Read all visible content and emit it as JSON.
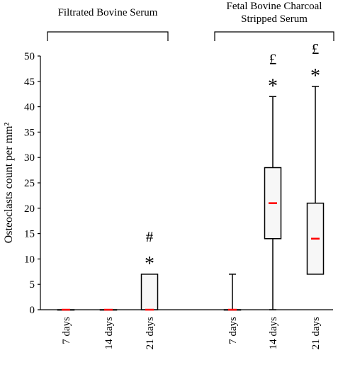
{
  "chart_data": {
    "type": "box",
    "ylabel": "Osteoclasts count per mm²",
    "ylim": [
      0,
      50
    ],
    "yticks": [
      0,
      5,
      10,
      15,
      20,
      25,
      30,
      35,
      40,
      45,
      50
    ],
    "grid": false,
    "groups": [
      {
        "label": "Filtrated Bovine Serum",
        "span": [
          0,
          2
        ]
      },
      {
        "label": "Fetal Bovine Charcoal Stripped Serum",
        "label_lines": [
          "Fetal Bovine Charcoal",
          "Stripped Serum"
        ],
        "span": [
          3,
          5
        ]
      }
    ],
    "categories": [
      "7 days",
      "14 days",
      "21 days",
      "7 days",
      "14 days",
      "21 days"
    ],
    "boxes": [
      {
        "min": 0,
        "q1": 0,
        "median": 0,
        "q3": 0,
        "max": 0,
        "markers": []
      },
      {
        "min": 0,
        "q1": 0,
        "median": 0,
        "q3": 0,
        "max": 0,
        "markers": []
      },
      {
        "min": 0,
        "q1": 0,
        "median": 0,
        "q3": 7,
        "max": 7,
        "markers": [
          "#",
          "*"
        ]
      },
      {
        "min": 0,
        "q1": 0,
        "median": 0,
        "q3": 0,
        "max": 7,
        "markers": []
      },
      {
        "min": 0,
        "q1": 14,
        "median": 21,
        "q3": 28,
        "max": 42,
        "markers": [
          "£",
          "*"
        ]
      },
      {
        "min": 7,
        "q1": 7,
        "median": 14,
        "q3": 21,
        "max": 44,
        "markers": [
          "£",
          "*"
        ]
      }
    ],
    "colors": {
      "box_fill": "#f7f7f7",
      "box_stroke": "#000000",
      "median": "#ff0000"
    }
  }
}
